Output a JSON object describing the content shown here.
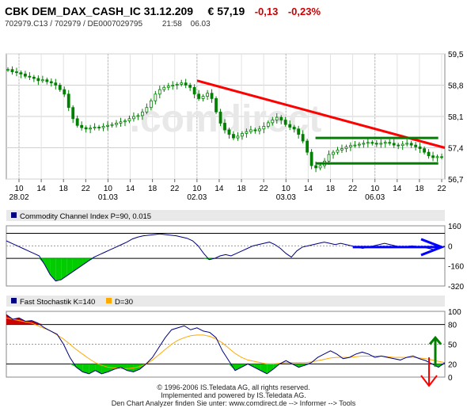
{
  "header": {
    "symbol": "CBK DEM_DAX_CASH_IC 31.12.209",
    "price": "€ 57,19",
    "change_abs": "-0,13",
    "change_pct": "-0,23%",
    "ids": "702979.C13  /  702979  /  DE0007029795",
    "time": "21:58",
    "date": "06.03"
  },
  "watermark": ".comdirect",
  "colors": {
    "candle": "#008000",
    "resistance": "#ff0000",
    "channel": "#008000",
    "indicator_line": "#000080",
    "cci_fill": "#00cc00",
    "d_line": "#ffaa00",
    "arrow_right": "#0000ff",
    "arrow_up": "#008000",
    "arrow_down": "#ff0000",
    "oversold_fill": "#00cc00",
    "overbought_fill": "#cc0000"
  },
  "chart_data": [
    {
      "type": "candlestick",
      "ylim": [
        56.7,
        59.5
      ],
      "y_ticks": [
        "59,5",
        "58,8",
        "58,1",
        "57,4",
        "56,7"
      ],
      "x_tick_labels": [
        "10",
        "14",
        "18",
        "22",
        "10",
        "14",
        "18",
        "22",
        "10",
        "14",
        "18",
        "22",
        "10",
        "14",
        "18",
        "22",
        "10",
        "14",
        "18",
        "22"
      ],
      "date_labels": [
        "28.02",
        "01.03",
        "02.03",
        "03.03",
        "06.03"
      ],
      "close_series": [
        59.15,
        59.1,
        59.08,
        59.05,
        59.0,
        58.98,
        58.95,
        58.9,
        58.92,
        58.88,
        58.85,
        58.8,
        58.7,
        58.6,
        58.3,
        58.05,
        57.9,
        57.85,
        57.82,
        57.84,
        57.86,
        57.85,
        57.88,
        57.9,
        57.92,
        57.95,
        57.98,
        58.0,
        58.05,
        58.1,
        58.12,
        58.2,
        58.3,
        58.45,
        58.6,
        58.7,
        58.75,
        58.78,
        58.8,
        58.82,
        58.85,
        58.8,
        58.75,
        58.6,
        58.5,
        58.55,
        58.62,
        58.5,
        58.2,
        57.95,
        57.8,
        57.7,
        57.62,
        57.66,
        57.72,
        57.76,
        57.8,
        57.78,
        57.82,
        57.88,
        57.96,
        58.02,
        58.08,
        58.02,
        57.92,
        57.86,
        57.82,
        57.7,
        57.55,
        57.3,
        57.0,
        56.95,
        57.0,
        57.1,
        57.25,
        57.3,
        57.35,
        57.38,
        57.42,
        57.45,
        57.46,
        57.48,
        57.5,
        57.52,
        57.5,
        57.48,
        57.5,
        57.52,
        57.5,
        57.46,
        57.45,
        57.48,
        57.5,
        57.46,
        57.42,
        57.38,
        57.3,
        57.22,
        57.18,
        57.2,
        57.19
      ],
      "annotations": {
        "resistance_line": [
          [
            0.435,
            58.9
          ],
          [
            1.0,
            57.4
          ]
        ],
        "channel_upper": [
          [
            0.705,
            57.62
          ],
          [
            0.985,
            57.62
          ]
        ],
        "channel_lower": [
          [
            0.705,
            57.05
          ],
          [
            0.985,
            57.05
          ]
        ]
      }
    },
    {
      "type": "line",
      "title": "Commodity Channel Index P=90, 0.015",
      "ylim": [
        -320,
        160
      ],
      "y_ticks": [
        "160",
        "0",
        "-160",
        "-320"
      ],
      "reference_lines": [
        100,
        -100
      ],
      "values": [
        40,
        20,
        0,
        -20,
        -40,
        -60,
        -80,
        -150,
        -230,
        -280,
        -270,
        -240,
        -210,
        -180,
        -150,
        -120,
        -90,
        -70,
        -50,
        -30,
        -10,
        10,
        30,
        55,
        70,
        80,
        85,
        90,
        95,
        90,
        85,
        80,
        70,
        60,
        40,
        0,
        -60,
        -110,
        -100,
        -80,
        -70,
        -80,
        -60,
        -40,
        -20,
        0,
        10,
        20,
        30,
        10,
        -20,
        -60,
        -90,
        -40,
        -10,
        0,
        10,
        20,
        30,
        20,
        10,
        20,
        10,
        0,
        -10,
        -20,
        -10,
        0,
        10,
        20,
        10,
        0,
        -10,
        -5,
        0,
        -5,
        -10,
        -20,
        -30,
        -10,
        -5
      ],
      "annotation": "arrow-right"
    },
    {
      "type": "line",
      "title": "Fast Stochastik K=140",
      "legend": [
        "Fast Stochastik K=140",
        "D=30"
      ],
      "ylim": [
        0,
        100
      ],
      "y_ticks": [
        "100",
        "80",
        "50",
        "20",
        "0"
      ],
      "reference_lines": [
        80,
        20
      ],
      "k_values": [
        95,
        88,
        90,
        85,
        86,
        82,
        75,
        70,
        65,
        50,
        30,
        15,
        8,
        5,
        10,
        5,
        8,
        12,
        15,
        10,
        8,
        12,
        20,
        30,
        45,
        60,
        72,
        75,
        78,
        72,
        75,
        70,
        68,
        60,
        40,
        25,
        10,
        15,
        20,
        15,
        10,
        5,
        12,
        20,
        25,
        20,
        15,
        18,
        22,
        30,
        35,
        40,
        35,
        28,
        30,
        35,
        38,
        35,
        30,
        32,
        30,
        28,
        26,
        30,
        32,
        28,
        25,
        20,
        15,
        22
      ],
      "d_values": [
        90,
        88,
        86,
        84,
        82,
        78,
        74,
        70,
        64,
        58,
        50,
        42,
        35,
        28,
        22,
        18,
        15,
        14,
        13,
        13,
        14,
        16,
        20,
        26,
        34,
        42,
        50,
        56,
        60,
        63,
        64,
        64,
        62,
        58,
        52,
        44,
        36,
        30,
        26,
        24,
        22,
        20,
        20,
        21,
        22,
        22,
        22,
        22,
        23,
        25,
        27,
        29,
        30,
        30,
        30,
        31,
        32,
        32,
        32,
        32,
        31,
        30,
        30,
        30,
        30,
        29,
        28,
        26,
        24,
        22
      ],
      "annotation": "arrows-up-down"
    }
  ],
  "footer": {
    "line1": "© 1996-2006 IS.Teledata AG, all rights reserved.",
    "line2": "Implemented and powered by IS.Teledata AG.",
    "line3": "Den Chart Analyzer finden Sie unter: www.comdirect.de --> Informer --> Tools"
  }
}
